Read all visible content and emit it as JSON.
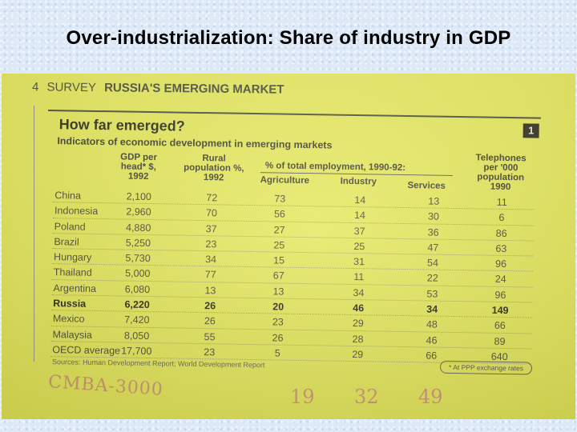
{
  "slide": {
    "title": "Over-industrialization: Share of industry in GDP"
  },
  "page": {
    "number": "4",
    "survey": "SURVEY",
    "header": "RUSSIA'S EMERGING MARKET"
  },
  "table": {
    "title": "How far emerged?",
    "number": "1",
    "subtitle": "Indicators of economic development in emerging markets",
    "headers": {
      "gdp": "GDP per head* $, 1992",
      "rural": "Rural population %, 1992",
      "employment": "% of total employment, 1990-92:",
      "agriculture": "Agriculture",
      "industry": "Industry",
      "services": "Services",
      "telephones": "Telephones per '000 population 1990"
    },
    "rows": [
      {
        "country": "China",
        "gdp": "2,100",
        "rural": "72",
        "agri": "73",
        "ind": "14",
        "serv": "13",
        "tel": "11"
      },
      {
        "country": "Indonesia",
        "gdp": "2,960",
        "rural": "70",
        "agri": "56",
        "ind": "14",
        "serv": "30",
        "tel": "6"
      },
      {
        "country": "Poland",
        "gdp": "4,880",
        "rural": "37",
        "agri": "27",
        "ind": "37",
        "serv": "36",
        "tel": "86"
      },
      {
        "country": "Brazil",
        "gdp": "5,250",
        "rural": "23",
        "agri": "25",
        "ind": "25",
        "serv": "47",
        "tel": "63"
      },
      {
        "country": "Hungary",
        "gdp": "5,730",
        "rural": "34",
        "agri": "15",
        "ind": "31",
        "serv": "54",
        "tel": "96"
      },
      {
        "country": "Thailand",
        "gdp": "5,000",
        "rural": "77",
        "agri": "67",
        "ind": "11",
        "serv": "22",
        "tel": "24"
      },
      {
        "country": "Argentina",
        "gdp": "6,080",
        "rural": "13",
        "agri": "13",
        "ind": "34",
        "serv": "53",
        "tel": "96"
      },
      {
        "country": "Russia",
        "gdp": "6,220",
        "rural": "26",
        "agri": "20",
        "ind": "46",
        "serv": "34",
        "tel": "149",
        "highlight": true
      },
      {
        "country": "Mexico",
        "gdp": "7,420",
        "rural": "26",
        "agri": "23",
        "ind": "29",
        "serv": "48",
        "tel": "66"
      },
      {
        "country": "Malaysia",
        "gdp": "8,050",
        "rural": "55",
        "agri": "26",
        "ind": "28",
        "serv": "46",
        "tel": "89"
      },
      {
        "country": "OECD average",
        "gdp": "17,700",
        "rural": "23",
        "agri": "5",
        "ind": "29",
        "serv": "66",
        "tel": "640"
      }
    ],
    "source": "Sources: Human Development Report; World Development Report",
    "footnote": "* At PPP exchange rates"
  },
  "handwriting": {
    "left": "CMBA-3000",
    "n1": "19",
    "n2": "32",
    "n3": "49"
  }
}
